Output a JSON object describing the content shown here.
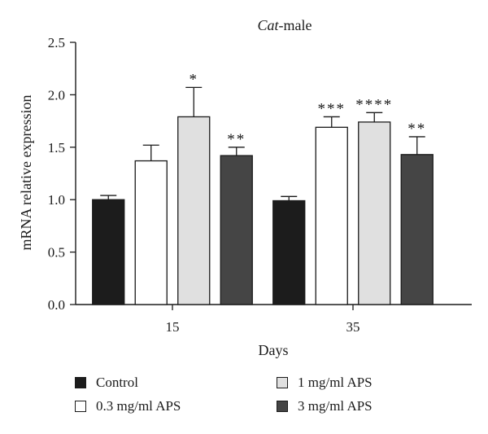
{
  "chart_data": {
    "type": "bar",
    "title": "Cat-male",
    "title_italic_part": "Cat",
    "title_rest": "-male",
    "xlabel": "Days",
    "ylabel": "mRNA relative expression",
    "categories": [
      "15",
      "35"
    ],
    "ylim": [
      0,
      2.5
    ],
    "yticks": [
      "0.0",
      "0.5",
      "1.0",
      "1.5",
      "2.0",
      "2.5"
    ],
    "grid": false,
    "legend_position": "bottom",
    "series": [
      {
        "name": "Control",
        "color": "#1c1c1c",
        "values": [
          1.0,
          0.99
        ],
        "errors": [
          0.04,
          0.04
        ],
        "significance": [
          "",
          ""
        ]
      },
      {
        "name": "0.3 mg/ml APS",
        "color": "#ffffff",
        "values": [
          1.37,
          1.69
        ],
        "errors": [
          0.15,
          0.1
        ],
        "significance": [
          "",
          "***"
        ]
      },
      {
        "name": "1 mg/ml APS",
        "color": "#e0e0e0",
        "values": [
          1.79,
          1.74
        ],
        "errors": [
          0.28,
          0.09
        ],
        "significance": [
          "*",
          "****"
        ]
      },
      {
        "name": "3 mg/ml APS",
        "color": "#454545",
        "values": [
          1.42,
          1.43
        ],
        "errors": [
          0.08,
          0.17
        ],
        "significance": [
          "**",
          "**"
        ]
      }
    ]
  }
}
